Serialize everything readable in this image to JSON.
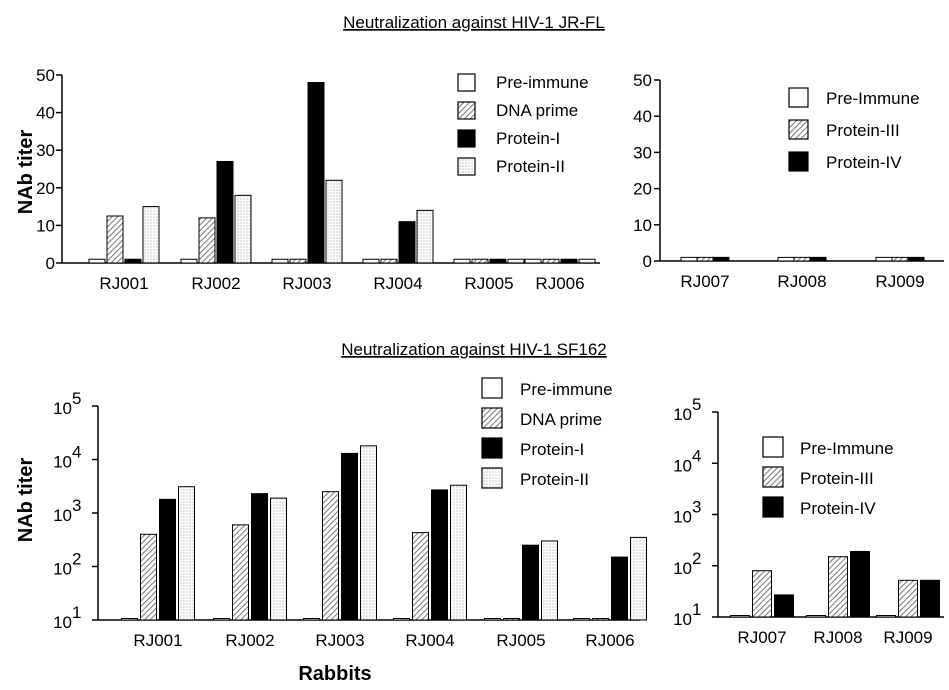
{
  "colors": {
    "pre_immune": "#ffffff",
    "dna_prime": "hatch-dense",
    "protein_I": "#000000",
    "protein_II": "stipple-light",
    "protein_III": "hatch-dense",
    "protein_IV": "#000000"
  },
  "xlabel": "Rabbits",
  "chart_data": [
    {
      "type": "bar",
      "title": "Neutralization against HIV-1 JR-FL",
      "ylabel": "NAb titer",
      "ylim": [
        0,
        50
      ],
      "yticks": [
        "0",
        "10",
        "20",
        "30",
        "40",
        "50"
      ],
      "categories": [
        "RJ001",
        "RJ002",
        "RJ003",
        "RJ004",
        "RJ005",
        "RJ006"
      ],
      "series": [
        {
          "name": "Pre-immune",
          "values": [
            1,
            1,
            1,
            1,
            1,
            1
          ]
        },
        {
          "name": "DNA prime",
          "values": [
            12.5,
            12,
            1,
            1,
            1,
            1
          ]
        },
        {
          "name": "Protein-I",
          "values": [
            1,
            27,
            48,
            11,
            1,
            1
          ]
        },
        {
          "name": "Protein-II",
          "values": [
            15,
            18,
            22,
            14,
            1,
            1
          ]
        }
      ],
      "legend": "top-right"
    },
    {
      "type": "bar",
      "title": "Neutralization against HIV-1 JR-FL",
      "ylim": [
        0,
        50
      ],
      "yticks": [
        "0",
        "10",
        "20",
        "30",
        "40",
        "50"
      ],
      "categories": [
        "RJ007",
        "RJ008",
        "RJ009"
      ],
      "series": [
        {
          "name": "Pre-Immune",
          "values": [
            1,
            1,
            1
          ]
        },
        {
          "name": "Protein-III",
          "values": [
            1,
            1,
            1
          ]
        },
        {
          "name": "Protein-IV",
          "values": [
            1,
            1,
            1
          ]
        }
      ],
      "legend": "top-right"
    },
    {
      "type": "bar",
      "title": "Neutralization against HIV-1 SF162",
      "ylabel": "NAb titer",
      "xlabel": "Rabbits",
      "yscale": "log",
      "ylim": [
        10,
        100000
      ],
      "ytick_labels": [
        [
          "10",
          "1"
        ],
        [
          "10",
          "2"
        ],
        [
          "10",
          "3"
        ],
        [
          "10",
          "4"
        ],
        [
          "10",
          " 5"
        ]
      ],
      "categories": [
        "RJ001",
        "RJ002",
        "RJ003",
        "RJ004",
        "RJ005",
        "RJ006"
      ],
      "series": [
        {
          "name": "Pre-immune",
          "values": [
            10,
            10,
            10,
            10,
            10,
            10
          ]
        },
        {
          "name": "DNA prime",
          "values": [
            400,
            600,
            2500,
            430,
            10,
            10
          ]
        },
        {
          "name": "Protein-I",
          "values": [
            1800,
            2300,
            13000,
            2700,
            250,
            150
          ]
        },
        {
          "name": "Protein-II",
          "values": [
            3100,
            1900,
            18000,
            3300,
            300,
            350
          ]
        }
      ],
      "legend": "top-right"
    },
    {
      "type": "bar",
      "title": "Neutralization against HIV-1 SF162",
      "yscale": "log",
      "ylim": [
        10,
        100000
      ],
      "ytick_labels": [
        [
          "10",
          "1"
        ],
        [
          "10",
          "2"
        ],
        [
          "10",
          "3"
        ],
        [
          "10",
          " 4"
        ],
        [
          "10",
          " 5"
        ]
      ],
      "categories": [
        "RJ007",
        "RJ008",
        "RJ009"
      ],
      "series": [
        {
          "name": "Pre-Immune",
          "values": [
            10,
            10,
            10
          ]
        },
        {
          "name": "Protein-III",
          "values": [
            80,
            150,
            52
          ]
        },
        {
          "name": "Protein-IV",
          "values": [
            27,
            190,
            52
          ]
        }
      ],
      "legend": "top-right"
    }
  ]
}
